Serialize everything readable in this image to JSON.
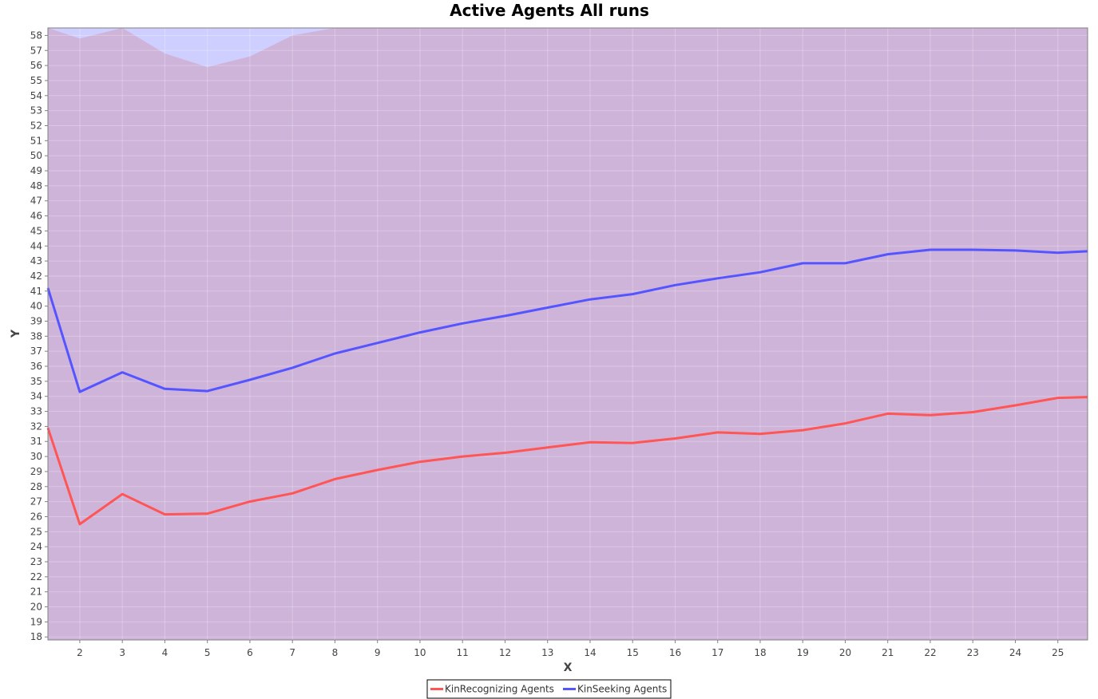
{
  "chart_data": {
    "type": "line",
    "title": "Active Agents All runs",
    "xlabel": "X",
    "ylabel": "Y",
    "xlim": [
      1.25,
      25.7
    ],
    "ylim": [
      17.8,
      58.5
    ],
    "x_ticks": [
      2,
      3,
      4,
      5,
      6,
      7,
      8,
      9,
      10,
      11,
      12,
      13,
      14,
      15,
      16,
      17,
      18,
      19,
      20,
      21,
      22,
      23,
      24,
      25
    ],
    "y_ticks": [
      18,
      19,
      20,
      21,
      22,
      23,
      24,
      25,
      26,
      27,
      28,
      29,
      30,
      31,
      32,
      33,
      34,
      35,
      36,
      37,
      38,
      39,
      40,
      41,
      42,
      43,
      44,
      45,
      46,
      47,
      48,
      49,
      50,
      51,
      52,
      53,
      54,
      55,
      56,
      57,
      58
    ],
    "x": [
      1.25,
      2,
      3,
      4,
      5,
      6,
      7,
      8,
      9,
      10,
      11,
      12,
      13,
      14,
      15,
      16,
      17,
      18,
      19,
      20,
      21,
      22,
      23,
      24,
      25,
      25.7
    ],
    "series": [
      {
        "name": "KinRecognizing Agents",
        "color": "#ff5555",
        "values": [
          31.9,
          25.5,
          27.5,
          26.15,
          26.2,
          27.0,
          27.55,
          28.5,
          29.1,
          29.65,
          30.0,
          30.25,
          30.6,
          30.95,
          30.9,
          31.2,
          31.6,
          31.5,
          31.75,
          32.2,
          32.85,
          32.75,
          32.95,
          33.4,
          33.9,
          33.95
        ],
        "band_upper": [
          58.5,
          57.8,
          58.5,
          56.8,
          55.9,
          56.6,
          58.0,
          58.5,
          58.5,
          58.5,
          58.5,
          58.5,
          58.5,
          58.5,
          58.5,
          58.5,
          58.5,
          58.5,
          58.5,
          58.5,
          58.5,
          58.5,
          58.5,
          58.5,
          58.5,
          58.5
        ],
        "band_lower": [
          17.8,
          17.8,
          17.8,
          17.8,
          17.8,
          17.8,
          17.8,
          17.8,
          17.8,
          17.8,
          17.8,
          17.8,
          17.8,
          17.8,
          17.8,
          17.8,
          17.8,
          17.8,
          17.8,
          17.8,
          17.8,
          17.8,
          17.8,
          17.8,
          17.8,
          17.8
        ],
        "band_color": "#ffc8b4"
      },
      {
        "name": "KinSeeking Agents",
        "color": "#5555ff",
        "values": [
          41.2,
          34.3,
          35.6,
          34.5,
          34.35,
          35.1,
          35.9,
          36.85,
          37.55,
          38.25,
          38.85,
          39.35,
          39.9,
          40.45,
          40.8,
          41.4,
          41.85,
          42.25,
          42.85,
          42.85,
          43.45,
          43.75,
          43.75,
          43.7,
          43.55,
          43.65
        ],
        "band_upper": [
          58.5,
          58.5,
          58.5,
          58.5,
          58.5,
          58.5,
          58.5,
          58.5,
          58.5,
          58.5,
          58.5,
          58.5,
          58.5,
          58.5,
          58.5,
          58.5,
          58.5,
          58.5,
          58.5,
          58.5,
          58.5,
          58.5,
          58.5,
          58.5,
          58.5,
          58.5
        ],
        "band_lower": [
          17.8,
          17.8,
          17.8,
          17.8,
          17.8,
          17.8,
          17.8,
          17.8,
          17.8,
          17.8,
          17.8,
          17.8,
          17.8,
          17.8,
          17.8,
          17.8,
          17.8,
          17.8,
          17.8,
          17.8,
          17.8,
          17.8,
          17.8,
          17.8,
          17.8,
          17.8
        ],
        "band_color": "#a0a0ff"
      }
    ],
    "grid": true,
    "legend_position": "bottom"
  }
}
